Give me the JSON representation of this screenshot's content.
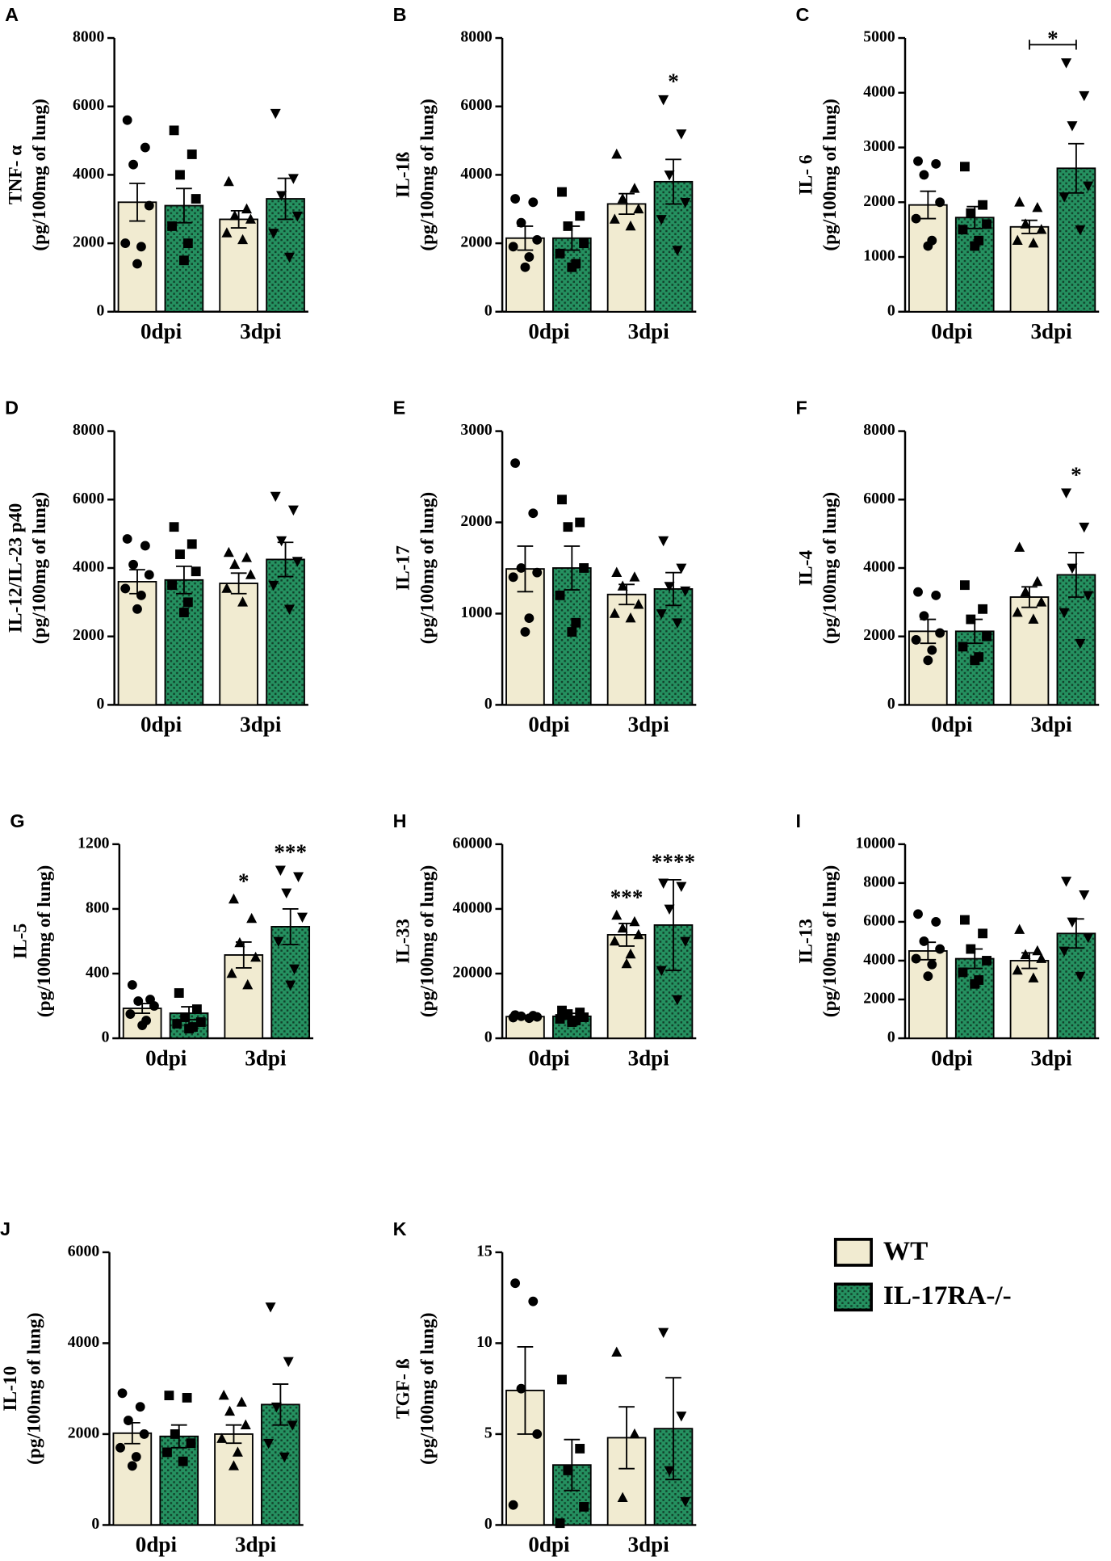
{
  "chart_data": [
    {
      "type": "bar",
      "panel": "A",
      "ylabel": "TNF- α",
      "yunit": "(pg/100mg of lung)",
      "categories": [
        "0dpi",
        "3dpi"
      ],
      "ylim": [
        0,
        8000
      ],
      "yticks": [
        0,
        2000,
        4000,
        6000,
        8000
      ],
      "series": [
        {
          "name": "WT",
          "color": "#f1ebd1",
          "markers": [
            "circle",
            "triangle"
          ],
          "values": [
            3200,
            2700
          ],
          "errors": [
            550,
            250
          ],
          "points": [
            [
              5600,
              4800,
              4300,
              3100,
              2000,
              1900,
              1400
            ],
            [
              3800,
              3000,
              2800,
              2700,
              2300,
              2100
            ]
          ]
        },
        {
          "name": "IL-17RA-/-",
          "color": "#259160",
          "markers": [
            "square",
            "triangle-down"
          ],
          "values": [
            3100,
            3300
          ],
          "errors": [
            500,
            600
          ],
          "points": [
            [
              5300,
              4600,
              4000,
              3300,
              2500,
              2000,
              1500
            ],
            [
              5800,
              3900,
              3400,
              2800,
              2300,
              1600
            ]
          ]
        }
      ],
      "annotations": []
    },
    {
      "type": "bar",
      "panel": "B",
      "ylabel": "IL-1ß",
      "yunit": "(pg/100mg of lung)",
      "categories": [
        "0dpi",
        "3dpi"
      ],
      "ylim": [
        0,
        8000
      ],
      "yticks": [
        0,
        2000,
        4000,
        6000,
        8000
      ],
      "series": [
        {
          "name": "WT",
          "color": "#f1ebd1",
          "markers": [
            "circle",
            "triangle"
          ],
          "values": [
            2150,
            3150
          ],
          "errors": [
            350,
            300
          ],
          "points": [
            [
              3300,
              3200,
              2600,
              2100,
              1900,
              1600,
              1300
            ],
            [
              4600,
              3600,
              3300,
              3000,
              2700,
              2500
            ]
          ]
        },
        {
          "name": "IL-17RA-/-",
          "color": "#259160",
          "markers": [
            "square",
            "triangle-down"
          ],
          "values": [
            2150,
            3800
          ],
          "errors": [
            350,
            650
          ],
          "points": [
            [
              3500,
              2800,
              2500,
              2000,
              1700,
              1400,
              1300
            ],
            [
              6200,
              5200,
              4000,
              3200,
              2700,
              1800
            ]
          ]
        }
      ],
      "annotations": [
        {
          "label": "*",
          "series": 1,
          "category": 1
        }
      ]
    },
    {
      "type": "bar",
      "panel": "C",
      "ylabel": "IL- 6",
      "yunit": "(pg/100mg of lung)",
      "categories": [
        "0dpi",
        "3dpi"
      ],
      "ylim": [
        0,
        5000
      ],
      "yticks": [
        0,
        1000,
        2000,
        3000,
        4000,
        5000
      ],
      "series": [
        {
          "name": "WT",
          "color": "#f1ebd1",
          "markers": [
            "circle",
            "triangle"
          ],
          "values": [
            1950,
            1550
          ],
          "errors": [
            250,
            120
          ],
          "points": [
            [
              2750,
              2700,
              2500,
              2000,
              1700,
              1300,
              1200
            ],
            [
              2000,
              1900,
              1600,
              1500,
              1300,
              1250
            ]
          ]
        },
        {
          "name": "IL-17RA-/-",
          "color": "#259160",
          "markers": [
            "square",
            "triangle-down"
          ],
          "values": [
            1720,
            2620
          ],
          "errors": [
            200,
            450
          ],
          "points": [
            [
              2650,
              1950,
              1800,
              1600,
              1500,
              1300,
              1200
            ],
            [
              4550,
              3950,
              3400,
              2300,
              2100,
              1500
            ]
          ]
        }
      ],
      "annotations": [
        {
          "label": "*",
          "category": 1,
          "bracket": true
        }
      ]
    },
    {
      "type": "bar",
      "panel": "D",
      "ylabel": "IL-12/IL-23 p40",
      "yunit": "(pg/100mg of lung)",
      "categories": [
        "0dpi",
        "3dpi"
      ],
      "ylim": [
        0,
        8000
      ],
      "yticks": [
        0,
        2000,
        4000,
        6000,
        8000
      ],
      "series": [
        {
          "name": "WT",
          "color": "#f1ebd1",
          "markers": [
            "circle",
            "triangle"
          ],
          "values": [
            3600,
            3550
          ],
          "errors": [
            350,
            300
          ],
          "points": [
            [
              4850,
              4650,
              4100,
              3800,
              3400,
              3200,
              2800
            ],
            [
              4450,
              4300,
              4100,
              3800,
              3400,
              3000
            ]
          ]
        },
        {
          "name": "IL-17RA-/-",
          "color": "#259160",
          "markers": [
            "square",
            "triangle-down"
          ],
          "values": [
            3650,
            4250
          ],
          "errors": [
            400,
            500
          ],
          "points": [
            [
              5200,
              4700,
              4400,
              3900,
              3500,
              3000,
              2700
            ],
            [
              6100,
              5700,
              4800,
              4200,
              3500,
              2800
            ]
          ]
        }
      ],
      "annotations": []
    },
    {
      "type": "bar",
      "panel": "E",
      "ylabel": "IL-17",
      "yunit": "(pg/100mg of lung)",
      "categories": [
        "0dpi",
        "3dpi"
      ],
      "ylim": [
        0,
        3000
      ],
      "yticks": [
        0,
        1000,
        2000,
        3000
      ],
      "series": [
        {
          "name": "WT",
          "color": "#f1ebd1",
          "markers": [
            "circle",
            "triangle"
          ],
          "values": [
            1490,
            1210
          ],
          "errors": [
            250,
            110
          ],
          "points": [
            [
              2650,
              2100,
              1500,
              1450,
              1400,
              950,
              800
            ],
            [
              1450,
              1400,
              1300,
              1100,
              1000,
              950
            ]
          ]
        },
        {
          "name": "IL-17RA-/-",
          "color": "#259160",
          "markers": [
            "square",
            "triangle-down"
          ],
          "values": [
            1500,
            1270
          ],
          "errors": [
            240,
            180
          ],
          "points": [
            [
              2250,
              2000,
              1950,
              1500,
              1200,
              900,
              800
            ],
            [
              1800,
              1500,
              1300,
              1250,
              1000,
              900
            ]
          ]
        }
      ],
      "annotations": []
    },
    {
      "type": "bar",
      "panel": "F",
      "ylabel": "IL-4",
      "yunit": "(pg/100mg of lung)",
      "categories": [
        "0dpi",
        "3dpi"
      ],
      "ylim": [
        0,
        8000
      ],
      "yticks": [
        0,
        2000,
        4000,
        6000,
        8000
      ],
      "series": [
        {
          "name": "WT",
          "color": "#f1ebd1",
          "markers": [
            "circle",
            "triangle"
          ],
          "values": [
            2150,
            3150
          ],
          "errors": [
            350,
            300
          ],
          "points": [
            [
              3300,
              3200,
              2600,
              2100,
              1900,
              1600,
              1300
            ],
            [
              4600,
              3600,
              3300,
              3000,
              2700,
              2500
            ]
          ]
        },
        {
          "name": "IL-17RA-/-",
          "color": "#259160",
          "markers": [
            "square",
            "triangle-down"
          ],
          "values": [
            2150,
            3800
          ],
          "errors": [
            350,
            650
          ],
          "points": [
            [
              3500,
              2800,
              2500,
              2000,
              1700,
              1400,
              1300
            ],
            [
              6200,
              5200,
              4000,
              3200,
              2700,
              1800
            ]
          ]
        }
      ],
      "annotations": [
        {
          "label": "*",
          "series": 1,
          "category": 1
        }
      ]
    },
    {
      "type": "bar",
      "panel": "G",
      "ylabel": "IL-5",
      "yunit": "(pg/100mg of lung)",
      "categories": [
        "0dpi",
        "3dpi"
      ],
      "ylim": [
        0,
        1200
      ],
      "yticks": [
        0,
        400,
        800,
        1200
      ],
      "series": [
        {
          "name": "WT",
          "color": "#f1ebd1",
          "markers": [
            "circle",
            "triangle"
          ],
          "values": [
            185,
            515
          ],
          "errors": [
            30,
            80
          ],
          "points": [
            [
              330,
              240,
              230,
              200,
              150,
              110,
              80
            ],
            [
              860,
              740,
              590,
              500,
              400,
              330
            ]
          ]
        },
        {
          "name": "IL-17RA-/-",
          "color": "#259160",
          "markers": [
            "square",
            "triangle-down"
          ],
          "values": [
            155,
            690
          ],
          "errors": [
            40,
            110
          ],
          "points": [
            [
              280,
              180,
              130,
              100,
              90,
              70,
              60
            ],
            [
              1040,
              1000,
              900,
              750,
              600,
              430,
              330
            ]
          ]
        }
      ],
      "annotations": [
        {
          "label": "*",
          "series": 0,
          "category": 1
        },
        {
          "label": "***",
          "series": 1,
          "category": 1
        }
      ]
    },
    {
      "type": "bar",
      "panel": "H",
      "ylabel": "IL-33",
      "yunit": "(pg/100mg of lung)",
      "categories": [
        "0dpi",
        "3dpi"
      ],
      "ylim": [
        0,
        60000
      ],
      "yticks": [
        0,
        20000,
        40000,
        60000
      ],
      "series": [
        {
          "name": "WT",
          "color": "#f1ebd1",
          "markers": [
            "circle",
            "triangle"
          ],
          "values": [
            6700,
            32000
          ],
          "errors": [
            300,
            3500
          ],
          "points": [
            [
              7200,
              7000,
              6800,
              6600,
              6400,
              6200
            ],
            [
              38000,
              36000,
              34000,
              32000,
              30000,
              26000,
              23000
            ]
          ]
        },
        {
          "name": "IL-17RA-/-",
          "color": "#259160",
          "markers": [
            "square",
            "triangle-down"
          ],
          "values": [
            6800,
            35000
          ],
          "errors": [
            900,
            14000
          ],
          "points": [
            [
              8600,
              8000,
              7500,
              6500,
              6000,
              5500,
              5000
            ],
            [
              48000,
              47000,
              40000,
              30000,
              21000,
              12000
            ]
          ]
        }
      ],
      "annotations": [
        {
          "label": "***",
          "series": 0,
          "category": 1
        },
        {
          "label": "****",
          "series": 1,
          "category": 1
        }
      ]
    },
    {
      "type": "bar",
      "panel": "I",
      "ylabel": "IL-13",
      "yunit": "(pg/100mg of lung)",
      "categories": [
        "0dpi",
        "3dpi"
      ],
      "ylim": [
        0,
        10000
      ],
      "yticks": [
        0,
        2000,
        4000,
        6000,
        8000,
        10000
      ],
      "series": [
        {
          "name": "WT",
          "color": "#f1ebd1",
          "markers": [
            "circle",
            "triangle"
          ],
          "values": [
            4500,
            4000
          ],
          "errors": [
            450,
            400
          ],
          "points": [
            [
              6400,
              6000,
              5000,
              4600,
              4100,
              3800,
              3200
            ],
            [
              5600,
              4500,
              4300,
              4100,
              3500,
              3100
            ]
          ]
        },
        {
          "name": "IL-17RA-/-",
          "color": "#259160",
          "markers": [
            "square",
            "triangle-down"
          ],
          "values": [
            4100,
            5400
          ],
          "errors": [
            500,
            750
          ],
          "points": [
            [
              6100,
              5400,
              4600,
              4000,
              3400,
              3000,
              2800
            ],
            [
              8100,
              7400,
              6000,
              5200,
              4500,
              3200
            ]
          ]
        }
      ],
      "annotations": []
    },
    {
      "type": "bar",
      "panel": "J",
      "ylabel": "IL-10",
      "yunit": "(pg/100mg of lung)",
      "categories": [
        "0dpi",
        "3dpi"
      ],
      "ylim": [
        0,
        6000
      ],
      "yticks": [
        0,
        2000,
        4000,
        6000
      ],
      "series": [
        {
          "name": "WT",
          "color": "#f1ebd1",
          "markers": [
            "circle",
            "triangle"
          ],
          "values": [
            2020,
            2000
          ],
          "errors": [
            230,
            200
          ],
          "points": [
            [
              2900,
              2600,
              2300,
              2000,
              1700,
              1500,
              1300
            ],
            [
              2850,
              2700,
              2500,
              2200,
              1900,
              1600,
              1300
            ]
          ]
        },
        {
          "name": "IL-17RA-/-",
          "color": "#259160",
          "markers": [
            "square",
            "triangle-down"
          ],
          "values": [
            1950,
            2650
          ],
          "errors": [
            250,
            450
          ],
          "points": [
            [
              2850,
              2800,
              2000,
              1800,
              1600,
              1400
            ],
            [
              4800,
              3600,
              2600,
              2200,
              1800,
              1500
            ]
          ]
        }
      ],
      "annotations": []
    },
    {
      "type": "bar",
      "panel": "K",
      "ylabel": "TGF- ß",
      "yunit": "(pg/100mg of lung)",
      "categories": [
        "0dpi",
        "3dpi"
      ],
      "ylim": [
        0,
        15
      ],
      "yticks": [
        0,
        5,
        10,
        15
      ],
      "series": [
        {
          "name": "WT",
          "color": "#f1ebd1",
          "markers": [
            "circle",
            "triangle"
          ],
          "values": [
            7.4,
            4.8
          ],
          "errors": [
            2.4,
            1.7
          ],
          "points": [
            [
              13.3,
              12.3,
              7.5,
              5,
              1.1
            ],
            [
              9.5,
              5,
              1.5
            ]
          ]
        },
        {
          "name": "IL-17RA-/-",
          "color": "#259160",
          "markers": [
            "square",
            "triangle-down"
          ],
          "values": [
            3.3,
            5.3
          ],
          "errors": [
            1.4,
            2.8
          ],
          "points": [
            [
              8,
              4.2,
              3,
              1,
              0.1
            ],
            [
              10.6,
              6,
              3,
              1.3
            ]
          ]
        }
      ],
      "annotations": []
    }
  ]
}
